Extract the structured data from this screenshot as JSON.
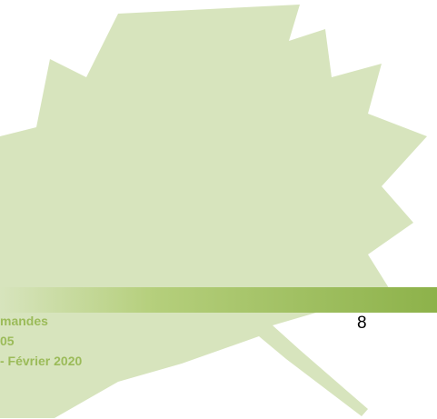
{
  "footer": {
    "lines": [
      "mandes",
      "05",
      "- Février 2020"
    ],
    "page_number": "8"
  }
}
